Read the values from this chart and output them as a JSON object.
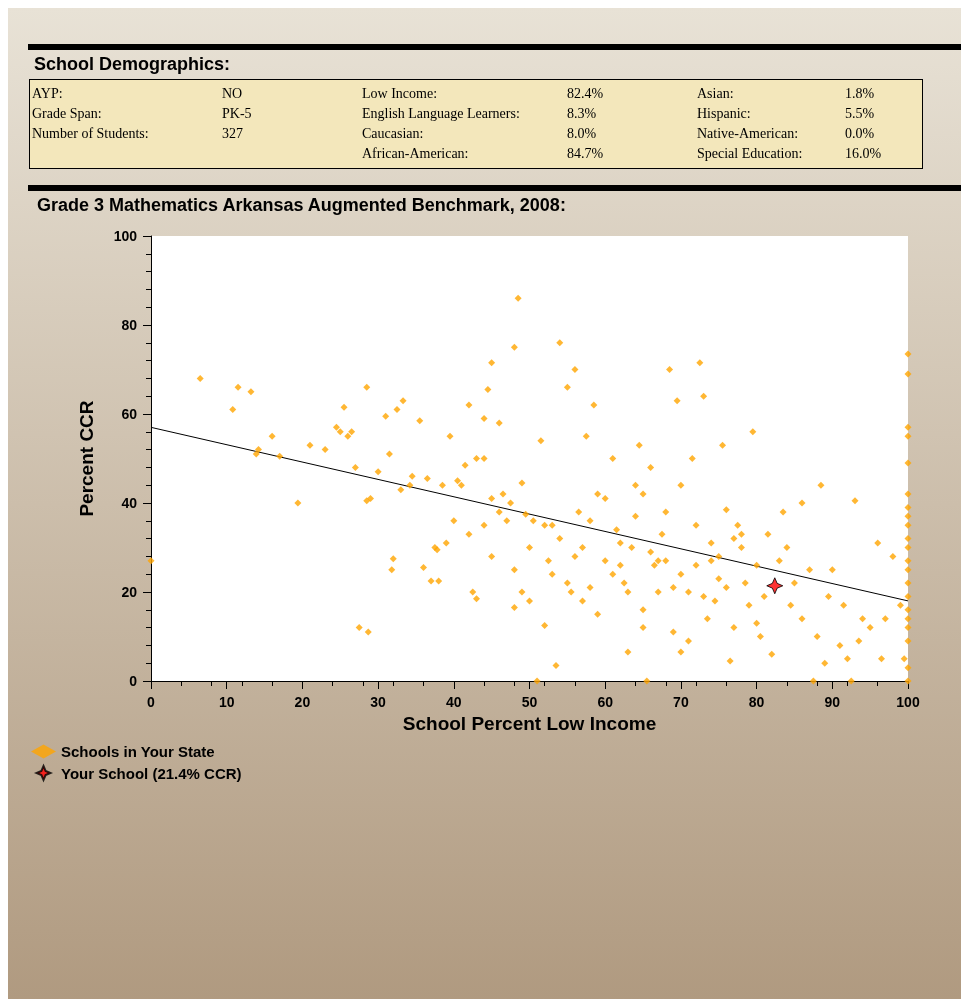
{
  "chart_data": [
    {
      "type": "other",
      "title": "School Demographics:",
      "annotations": [
        "AYP:",
        "NO",
        "Low Income:",
        "82.4%",
        "Asian:",
        "1.8%",
        "Grade Span:",
        "PK-5",
        "English Language Learners:",
        "8.3%",
        "Hispanic:",
        "5.5%",
        "Number of Students:",
        "327",
        "Caucasian:",
        "8.0%",
        "Native-American:",
        "0.0%",
        "African-American:",
        "84.7%",
        "Special Education:",
        "16.0%"
      ]
    },
    {
      "type": "scatter",
      "title": "Grade 3 Mathematics Arkansas Augmented Benchmark, 2008:",
      "xlabel": "School Percent Low Income",
      "ylabel": "Percent CCR",
      "xlim": [
        0,
        100
      ],
      "ylim": [
        0,
        100
      ],
      "xticks": [
        0,
        10,
        20,
        30,
        40,
        50,
        60,
        70,
        80,
        90,
        100
      ],
      "yticks": [
        0,
        20,
        40,
        60,
        80,
        100
      ],
      "grid": false,
      "legend": "bottom left",
      "marker": "diamond",
      "series": [
        {
          "name": "Schools in Your State",
          "color": "#ffa500",
          "x": [
            0,
            6.5,
            10.8,
            11.5,
            13.2,
            13.9,
            14.2,
            16,
            17,
            19.4,
            21,
            23,
            24.5,
            25,
            25.5,
            26,
            26.5,
            27,
            27.5,
            28.5,
            28.5,
            28.7,
            29,
            30,
            31,
            31.5,
            31.8,
            32,
            32.5,
            33,
            33.3,
            34.2,
            34.5,
            35.5,
            36,
            36.5,
            37,
            37.5,
            37.8,
            38,
            38.5,
            39,
            39.5,
            40,
            40.5,
            41,
            41.5,
            42,
            42,
            42.5,
            43,
            43,
            44,
            44,
            44.5,
            45,
            45,
            46,
            46.5,
            47.5,
            48,
            48,
            48.5,
            49,
            49.5,
            50,
            50.5,
            51,
            51.5,
            52,
            52.5,
            53,
            53.5,
            54,
            55,
            55.5,
            56,
            56.5,
            57,
            57.5,
            58,
            58.5,
            59,
            60,
            61,
            61.5,
            62,
            62.5,
            63,
            63.5,
            64,
            64.5,
            65,
            65,
            65.5,
            66,
            66.5,
            67,
            67.5,
            68,
            68.5,
            69,
            69.5,
            70,
            70,
            71,
            71.5,
            72,
            72.5,
            73,
            73.5,
            74,
            74.5,
            75,
            75.5,
            76,
            76.5,
            77,
            77.5,
            78,
            78.5,
            79.5,
            80,
            80.5,
            81,
            81.5,
            82,
            83,
            83.5,
            84,
            84.5,
            85,
            86,
            86,
            87,
            87.5,
            88,
            88.5,
            89,
            89.5,
            90,
            91,
            91.5,
            92,
            92.5,
            93,
            93.5,
            94,
            95,
            96,
            96.5,
            97,
            98,
            99,
            99.5,
            100,
            100,
            100,
            100,
            100,
            100,
            100,
            100,
            100,
            100,
            100,
            100,
            100,
            100,
            100,
            100,
            100,
            100,
            100,
            100,
            100,
            52,
            54,
            56,
            58,
            60,
            62,
            64,
            66,
            68,
            70,
            72,
            74,
            76,
            78,
            80,
            53,
            55,
            57,
            59,
            61,
            63,
            65,
            67,
            69,
            71,
            73,
            75,
            77,
            79,
            44,
            46,
            48,
            45,
            47,
            50,
            49
          ],
          "values": [
            27,
            68,
            61,
            66,
            65,
            51,
            52,
            55,
            50.5,
            40,
            53,
            52,
            57,
            56,
            61.5,
            55,
            56,
            48,
            12,
            40.5,
            66,
            11,
            41,
            47,
            59.5,
            51,
            25,
            27.5,
            61,
            43,
            63,
            44,
            46,
            58.5,
            25.5,
            45.5,
            22.5,
            30,
            29.5,
            22.5,
            44,
            31,
            55,
            36,
            45,
            44,
            48.5,
            33,
            62,
            20,
            50,
            18.5,
            50,
            59,
            65.5,
            71.5,
            41,
            58,
            42,
            40,
            16.5,
            75,
            86,
            44.5,
            37.5,
            30,
            36,
            0,
            54,
            12.5,
            27,
            35,
            3.5,
            76,
            66,
            20,
            70,
            38,
            30,
            55,
            21,
            62,
            42,
            27,
            50,
            34,
            26,
            22,
            6.5,
            30,
            37,
            53,
            42,
            12,
            0,
            48,
            26,
            20,
            33,
            38,
            70,
            21,
            63,
            44,
            6.5,
            20,
            50,
            35,
            71.5,
            64,
            14,
            31,
            18,
            23,
            53,
            38.5,
            4.5,
            12,
            35,
            30,
            22,
            56,
            13,
            10,
            19,
            33,
            6,
            27,
            38,
            30,
            17,
            22,
            40,
            14,
            25,
            0,
            10,
            44,
            4,
            19,
            25,
            8,
            17,
            5,
            0,
            40.5,
            9,
            14,
            12,
            31,
            5,
            14,
            28,
            17,
            5,
            73.5,
            69,
            57,
            55,
            49,
            42,
            39,
            37,
            35,
            32,
            30,
            27,
            25,
            22,
            19,
            16,
            14,
            12,
            9,
            3,
            0,
            35,
            32,
            28,
            36,
            41,
            31,
            44,
            29,
            27,
            24,
            26,
            27,
            21,
            33,
            26,
            24,
            22,
            18,
            15,
            24,
            20,
            16,
            27,
            11,
            9,
            19,
            28,
            32,
            17,
            35,
            38,
            25,
            28,
            36,
            18,
            20
          ]
        },
        {
          "name": "Your School (21.4% CCR)",
          "color": "#ff0000",
          "marker": "star",
          "x": [
            82.4
          ],
          "values": [
            21.4
          ]
        },
        {
          "type": "line",
          "color": "#000000",
          "marker": "none",
          "x": [
            0,
            100
          ],
          "values": [
            57,
            18
          ]
        }
      ]
    }
  ]
}
